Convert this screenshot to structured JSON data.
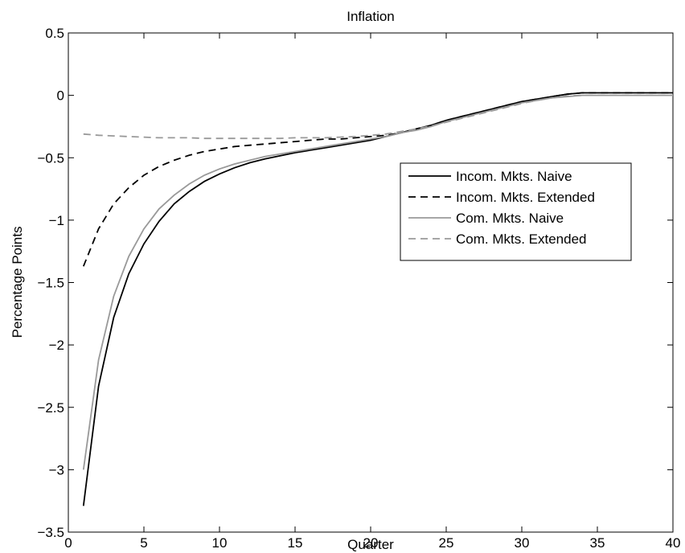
{
  "chart_data": {
    "type": "line",
    "title": "Inflation",
    "xlabel": "Quarter",
    "ylabel": "Percentage Points",
    "xlim": [
      0,
      40
    ],
    "ylim": [
      -3.5,
      0.5
    ],
    "xticks": [
      0,
      5,
      10,
      15,
      20,
      25,
      30,
      35,
      40
    ],
    "yticks": [
      0.5,
      0,
      -0.5,
      -1,
      -1.5,
      -2,
      -2.5,
      -3,
      -3.5
    ],
    "xtick_labels": [
      "0",
      "5",
      "10",
      "15",
      "20",
      "25",
      "30",
      "35",
      "40"
    ],
    "ytick_labels": [
      "0.5",
      "0",
      "−0.5",
      "−1",
      "−1.5",
      "−2",
      "−2.5",
      "−3",
      "−3.5"
    ],
    "grid": false,
    "legend_position": "right",
    "x": [
      1,
      2,
      3,
      4,
      5,
      6,
      7,
      8,
      9,
      10,
      11,
      12,
      13,
      14,
      15,
      16,
      17,
      18,
      19,
      20,
      21,
      22,
      23,
      24,
      25,
      26,
      27,
      28,
      29,
      30,
      31,
      32,
      33,
      34,
      35,
      36,
      37,
      38,
      39,
      40
    ],
    "series": [
      {
        "name": "Incom. Mkts. Naive",
        "color": "#000000",
        "dash": "solid",
        "values": [
          -3.29,
          -2.33,
          -1.78,
          -1.43,
          -1.19,
          -1.01,
          -0.87,
          -0.77,
          -0.69,
          -0.63,
          -0.58,
          -0.54,
          -0.51,
          -0.485,
          -0.46,
          -0.44,
          -0.42,
          -0.4,
          -0.38,
          -0.36,
          -0.33,
          -0.3,
          -0.27,
          -0.24,
          -0.2,
          -0.17,
          -0.14,
          -0.11,
          -0.08,
          -0.05,
          -0.03,
          -0.01,
          0.01,
          0.02,
          0.02,
          0.02,
          0.02,
          0.02,
          0.02,
          0.02
        ]
      },
      {
        "name": "Incom. Mkts. Extended",
        "color": "#000000",
        "dash": "dashed",
        "values": [
          -1.37,
          -1.07,
          -0.87,
          -0.74,
          -0.64,
          -0.57,
          -0.52,
          -0.48,
          -0.45,
          -0.43,
          -0.41,
          -0.4,
          -0.39,
          -0.38,
          -0.37,
          -0.36,
          -0.35,
          -0.35,
          -0.34,
          -0.33,
          -0.32,
          -0.3,
          -0.27,
          -0.24,
          -0.2,
          -0.17,
          -0.14,
          -0.11,
          -0.08,
          -0.05,
          -0.03,
          -0.01,
          0.01,
          0.02,
          0.02,
          0.02,
          0.02,
          0.02,
          0.02,
          0.02
        ]
      },
      {
        "name": "Com. Mkts. Naive",
        "color": "#999999",
        "dash": "solid",
        "values": [
          -3.0,
          -2.12,
          -1.61,
          -1.29,
          -1.07,
          -0.91,
          -0.8,
          -0.71,
          -0.64,
          -0.59,
          -0.55,
          -0.52,
          -0.49,
          -0.47,
          -0.45,
          -0.43,
          -0.41,
          -0.39,
          -0.37,
          -0.35,
          -0.33,
          -0.3,
          -0.28,
          -0.25,
          -0.21,
          -0.18,
          -0.15,
          -0.12,
          -0.09,
          -0.06,
          -0.04,
          -0.02,
          -0.01,
          0.0,
          0.0,
          0.0,
          0.0,
          0.0,
          0.0,
          0.0
        ]
      },
      {
        "name": "Com. Mkts. Extended",
        "color": "#999999",
        "dash": "dashed",
        "values": [
          -0.31,
          -0.32,
          -0.325,
          -0.33,
          -0.335,
          -0.34,
          -0.34,
          -0.34,
          -0.345,
          -0.345,
          -0.345,
          -0.345,
          -0.345,
          -0.345,
          -0.34,
          -0.34,
          -0.34,
          -0.335,
          -0.33,
          -0.32,
          -0.31,
          -0.29,
          -0.27,
          -0.245,
          -0.215,
          -0.185,
          -0.155,
          -0.125,
          -0.095,
          -0.065,
          -0.04,
          -0.02,
          -0.005,
          0.0,
          0.0,
          0.0,
          0.0,
          0.0,
          0.0,
          0.0
        ]
      }
    ]
  }
}
